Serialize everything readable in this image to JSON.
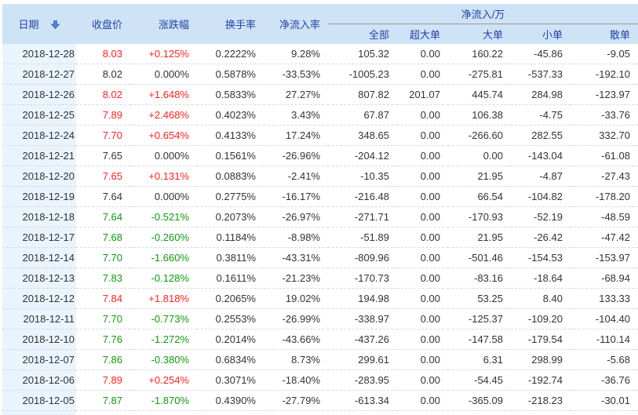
{
  "colors": {
    "up": "#ff2222",
    "down": "#0f9b0f",
    "neutral": "#333333",
    "header_text": "#2343a6",
    "header_bg": "#cfe3f6",
    "date_col_bg": "#eaf4fd",
    "group_divider": "#999999",
    "row_border": "#d9d9d9",
    "sort_arrow_fill": "#4a87d4",
    "sort_arrow_stroke": "#2f66b0"
  },
  "table": {
    "headers": {
      "date": "日期",
      "close": "收盘价",
      "change": "涨跌幅",
      "turnover": "换手率",
      "inflow_rate": "净流入率",
      "group": "净流入/万",
      "sub": {
        "total": "全部",
        "super_large": "超大单",
        "large": "大单",
        "small": "小单",
        "scattered": "散单"
      }
    },
    "sort": {
      "column": "date",
      "direction": "desc",
      "icon": "arrow-down-icon"
    },
    "rows": [
      {
        "date": "2018-12-28",
        "close": "8.03",
        "trend": "up",
        "change": "+0.125%",
        "turnover": "0.2222%",
        "inflow_rate": "9.28%",
        "total": "105.32",
        "super_large": "0.00",
        "large": "160.22",
        "small": "-45.86",
        "scattered": "-9.05"
      },
      {
        "date": "2018-12-27",
        "close": "8.02",
        "trend": "flat",
        "change": "0.000%",
        "turnover": "0.5878%",
        "inflow_rate": "-33.53%",
        "total": "-1005.23",
        "super_large": "0.00",
        "large": "-275.81",
        "small": "-537.33",
        "scattered": "-192.10"
      },
      {
        "date": "2018-12-26",
        "close": "8.02",
        "trend": "up",
        "change": "+1.648%",
        "turnover": "0.5833%",
        "inflow_rate": "27.27%",
        "total": "807.82",
        "super_large": "201.07",
        "large": "445.74",
        "small": "284.98",
        "scattered": "-123.97"
      },
      {
        "date": "2018-12-25",
        "close": "7.89",
        "trend": "up",
        "change": "+2.468%",
        "turnover": "0.4023%",
        "inflow_rate": "3.43%",
        "total": "67.87",
        "super_large": "0.00",
        "large": "106.38",
        "small": "-4.75",
        "scattered": "-33.76"
      },
      {
        "date": "2018-12-24",
        "close": "7.70",
        "trend": "up",
        "change": "+0.654%",
        "turnover": "0.4133%",
        "inflow_rate": "17.24%",
        "total": "348.65",
        "super_large": "0.00",
        "large": "-266.60",
        "small": "282.55",
        "scattered": "332.70"
      },
      {
        "date": "2018-12-21",
        "close": "7.65",
        "trend": "flat",
        "change": "0.000%",
        "turnover": "0.1561%",
        "inflow_rate": "-26.96%",
        "total": "-204.12",
        "super_large": "0.00",
        "large": "0.00",
        "small": "-143.04",
        "scattered": "-61.08"
      },
      {
        "date": "2018-12-20",
        "close": "7.65",
        "trend": "up",
        "change": "+0.131%",
        "turnover": "0.0883%",
        "inflow_rate": "-2.41%",
        "total": "-10.35",
        "super_large": "0.00",
        "large": "21.95",
        "small": "-4.87",
        "scattered": "-27.43"
      },
      {
        "date": "2018-12-19",
        "close": "7.64",
        "trend": "flat",
        "change": "0.000%",
        "turnover": "0.2775%",
        "inflow_rate": "-16.17%",
        "total": "-216.48",
        "super_large": "0.00",
        "large": "66.54",
        "small": "-104.82",
        "scattered": "-178.20"
      },
      {
        "date": "2018-12-18",
        "close": "7.64",
        "trend": "down",
        "change": "-0.521%",
        "turnover": "0.2073%",
        "inflow_rate": "-26.97%",
        "total": "-271.71",
        "super_large": "0.00",
        "large": "-170.93",
        "small": "-52.19",
        "scattered": "-48.59"
      },
      {
        "date": "2018-12-17",
        "close": "7.68",
        "trend": "down",
        "change": "-0.260%",
        "turnover": "0.1184%",
        "inflow_rate": "-8.98%",
        "total": "-51.89",
        "super_large": "0.00",
        "large": "21.95",
        "small": "-26.42",
        "scattered": "-47.42"
      },
      {
        "date": "2018-12-14",
        "close": "7.70",
        "trend": "down",
        "change": "-1.660%",
        "turnover": "0.3811%",
        "inflow_rate": "-43.31%",
        "total": "-809.96",
        "super_large": "0.00",
        "large": "-501.46",
        "small": "-154.53",
        "scattered": "-153.97"
      },
      {
        "date": "2018-12-13",
        "close": "7.83",
        "trend": "down",
        "change": "-0.128%",
        "turnover": "0.1611%",
        "inflow_rate": "-21.23%",
        "total": "-170.73",
        "super_large": "0.00",
        "large": "-83.16",
        "small": "-18.64",
        "scattered": "-68.94"
      },
      {
        "date": "2018-12-12",
        "close": "7.84",
        "trend": "up",
        "change": "+1.818%",
        "turnover": "0.2065%",
        "inflow_rate": "19.02%",
        "total": "194.98",
        "super_large": "0.00",
        "large": "53.25",
        "small": "8.40",
        "scattered": "133.33"
      },
      {
        "date": "2018-12-11",
        "close": "7.70",
        "trend": "down",
        "change": "-0.773%",
        "turnover": "0.2553%",
        "inflow_rate": "-26.99%",
        "total": "-338.97",
        "super_large": "0.00",
        "large": "-125.37",
        "small": "-109.20",
        "scattered": "-104.40"
      },
      {
        "date": "2018-12-10",
        "close": "7.76",
        "trend": "down",
        "change": "-1.272%",
        "turnover": "0.2014%",
        "inflow_rate": "-43.66%",
        "total": "-437.26",
        "super_large": "0.00",
        "large": "-147.58",
        "small": "-179.54",
        "scattered": "-110.14"
      },
      {
        "date": "2018-12-07",
        "close": "7.86",
        "trend": "down",
        "change": "-0.380%",
        "turnover": "0.6834%",
        "inflow_rate": "8.73%",
        "total": "299.61",
        "super_large": "0.00",
        "large": "6.31",
        "small": "298.99",
        "scattered": "-5.68"
      },
      {
        "date": "2018-12-06",
        "close": "7.89",
        "trend": "up",
        "change": "+0.254%",
        "turnover": "0.3071%",
        "inflow_rate": "-18.40%",
        "total": "-283.95",
        "super_large": "0.00",
        "large": "-54.45",
        "small": "-192.74",
        "scattered": "-36.76"
      },
      {
        "date": "2018-12-05",
        "close": "7.87",
        "trend": "down",
        "change": "-1.870%",
        "turnover": "0.4390%",
        "inflow_rate": "-27.79%",
        "total": "-613.34",
        "super_large": "0.00",
        "large": "-365.09",
        "small": "-218.23",
        "scattered": "-30.01"
      }
    ]
  }
}
